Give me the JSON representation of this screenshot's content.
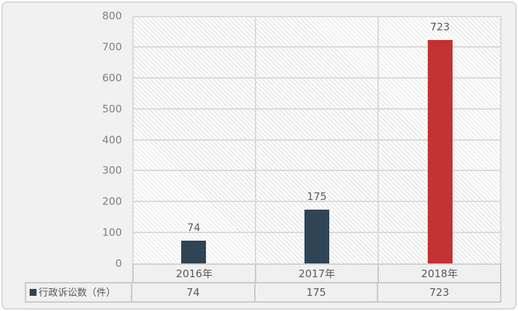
{
  "chart_data": {
    "type": "bar",
    "title": "",
    "categories": [
      "2016年",
      "2017年",
      "2018年"
    ],
    "series": [
      {
        "name": "行政诉讼数（件）",
        "values": [
          74,
          175,
          723
        ],
        "colors": [
          "#2f4455",
          "#2f4455",
          "#c23331"
        ]
      }
    ],
    "data_labels": [
      "74",
      "175",
      "723"
    ],
    "ylim": [
      0,
      800
    ],
    "y_tick_labels": [
      "0",
      "100",
      "200",
      "300",
      "400",
      "500",
      "600",
      "700",
      "800"
    ],
    "grid": true,
    "legend_position": "data-table-left",
    "data_table": {
      "row_header": "行政诉讼数（件）",
      "cells": [
        "74",
        "175",
        "723"
      ]
    }
  },
  "colors": {
    "bar_navy": "#2f4455",
    "bar_red": "#c23331",
    "plot_hatch": "#e3e3e3",
    "gridline": "#d9d9d9",
    "table_border": "#c9c9c9",
    "axis_text": "#7f7f7f",
    "label_text": "#595959",
    "chart_background": "#f1f1f1"
  }
}
